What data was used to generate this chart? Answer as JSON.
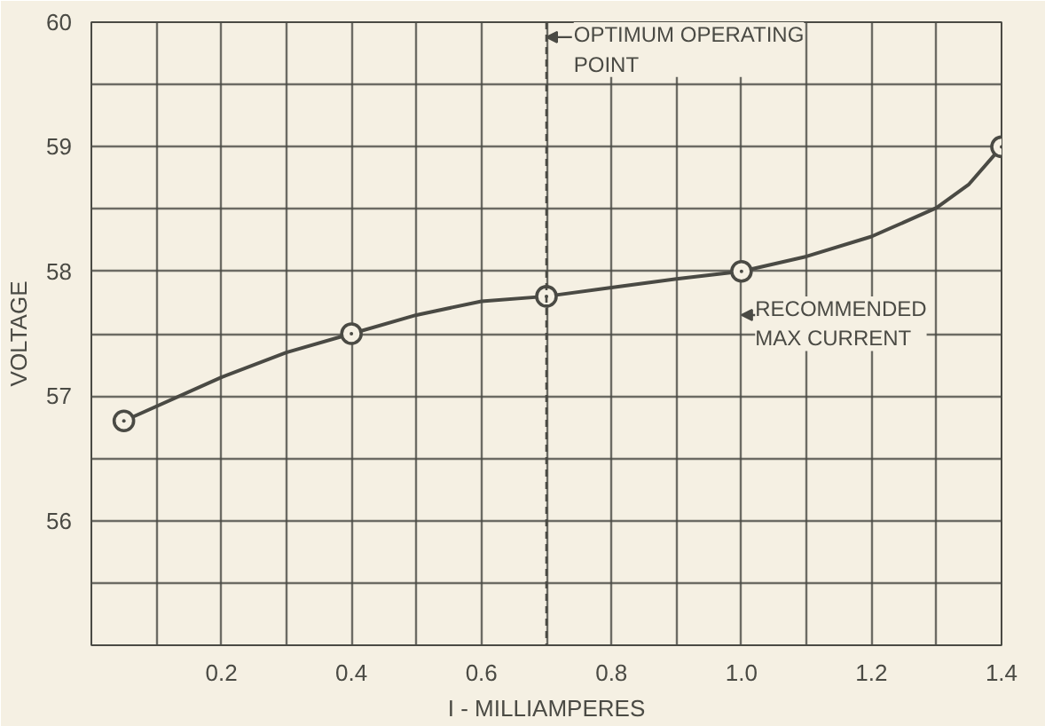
{
  "chart_data": {
    "type": "line",
    "xlabel": "I - MILLIAMPERES",
    "ylabel": "VOLTAGE",
    "x": [
      0.05,
      0.4,
      0.7,
      1.0,
      1.4
    ],
    "series": [
      {
        "color": "#4a4a44",
        "marker": "none",
        "x": [
          0.05,
          0.2,
          0.3,
          0.4,
          0.5,
          0.6,
          0.7,
          0.8,
          0.9,
          1.0,
          1.1,
          1.2,
          1.3,
          1.35,
          1.4
        ],
        "values": [
          56.8,
          57.15,
          57.35,
          57.5,
          57.65,
          57.76,
          57.8,
          57.87,
          57.94,
          58.0,
          58.12,
          58.28,
          58.51,
          58.7,
          59.0
        ]
      },
      {
        "type": "scatter",
        "color": "#4a4a44",
        "values": [
          56.8,
          57.5,
          57.8,
          58.0,
          59.0
        ]
      }
    ],
    "xlim": [
      0,
      1.4
    ],
    "ylim": [
      55,
      60
    ],
    "xticks": [
      {
        "value": 0,
        "label": null
      },
      {
        "value": 0.1,
        "label": null
      },
      0.2,
      {
        "value": 0.3,
        "label": null
      },
      0.4,
      {
        "value": 0.5,
        "label": null
      },
      0.6,
      {
        "value": 0.7,
        "label": null
      },
      0.8,
      {
        "value": 0.9,
        "label": null
      },
      {
        "value": 1.0,
        "label": "1.0"
      },
      {
        "value": 1.1,
        "label": null
      },
      1.2,
      {
        "value": 1.3,
        "label": null
      },
      1.4
    ],
    "yticks": [
      {
        "value": 55,
        "label": null
      },
      {
        "value": 55.5,
        "label": null
      },
      56,
      {
        "value": 56.5,
        "label": null
      },
      57,
      {
        "value": 57.5,
        "label": null
      },
      58,
      {
        "value": 58.5,
        "label": null
      },
      59,
      {
        "value": 59.5,
        "label": null
      },
      60
    ],
    "grid": true,
    "marker": "circle",
    "line_style": "solid",
    "ref_lines": [
      {
        "axis": "x",
        "value": 0.7,
        "label": "OPTIMUM OPERATING POINT",
        "line_style": "dashed"
      }
    ],
    "annotations": [
      {
        "text": "RECOMMENDED MAX CURRENT",
        "x": 1.0,
        "y": 58.0
      }
    ]
  }
}
